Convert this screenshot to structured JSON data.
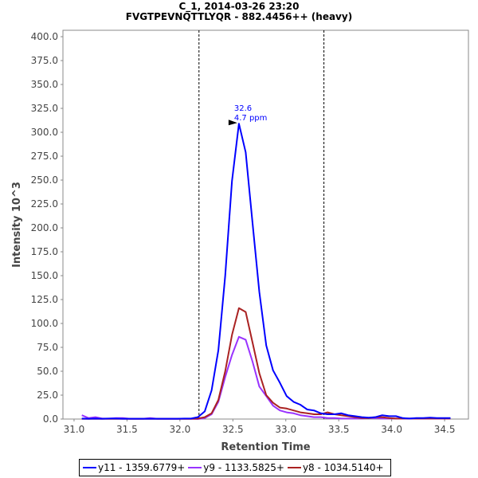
{
  "chart_data": {
    "type": "line",
    "title": "C_1, 2014-03-26 23:20",
    "subtitle": "FVGTPEVNQTTLYQR - 882.4456++ (heavy)",
    "xlabel": "Retention Time",
    "ylabel": "Intensity  10^3",
    "xlim": [
      30.895,
      34.725
    ],
    "ylim": [
      0,
      406.7
    ],
    "x_ticks": [
      "31.0",
      "31.5",
      "32.0",
      "32.5",
      "33.0",
      "33.5",
      "34.0",
      "34.5"
    ],
    "y_ticks": [
      "0.0",
      "25.0",
      "50.0",
      "75.0",
      "100.0",
      "125.0",
      "150.0",
      "175.0",
      "200.0",
      "225.0",
      "250.0",
      "275.0",
      "300.0",
      "325.0",
      "350.0",
      "375.0",
      "400.0"
    ],
    "grid": false,
    "legend_position": "bottom",
    "integration_boundaries": [
      32.18,
      33.36
    ],
    "peak_annotation": {
      "rt_label": "32.6",
      "ppm_label": "4.7 ppm",
      "x": 32.557,
      "y": 309
    },
    "x": [
      31.073,
      31.138,
      31.202,
      31.267,
      31.331,
      31.396,
      31.46,
      31.525,
      31.589,
      31.654,
      31.718,
      31.783,
      31.847,
      31.912,
      31.976,
      32.041,
      32.105,
      32.17,
      32.234,
      32.299,
      32.363,
      32.428,
      32.492,
      32.557,
      32.621,
      32.686,
      32.75,
      32.815,
      32.879,
      32.944,
      33.008,
      33.073,
      33.137,
      33.202,
      33.266,
      33.331,
      33.395,
      33.46,
      33.524,
      33.589,
      33.653,
      33.718,
      33.782,
      33.847,
      33.911,
      33.976,
      34.04,
      34.105,
      34.169,
      34.234,
      34.298,
      34.363,
      34.427,
      34.492,
      34.556
    ],
    "series": [
      {
        "name": "y11 - 1359.6779+",
        "color": "#0000ff",
        "values": [
          0.5,
          0.3,
          0.5,
          0.3,
          0.5,
          0.5,
          0.3,
          0.3,
          0.3,
          0.3,
          0.3,
          0.3,
          0.3,
          0.3,
          0.3,
          0.5,
          0.5,
          2,
          8,
          30,
          72,
          150,
          249,
          309,
          279,
          205,
          133,
          77,
          51,
          38,
          24,
          18,
          15,
          10,
          9,
          6,
          5,
          5,
          6,
          4,
          3,
          2,
          1.5,
          2,
          4,
          3,
          3,
          1,
          0.5,
          1,
          1,
          1.5,
          1,
          1,
          1
        ]
      },
      {
        "name": "y9 - 1133.5825+",
        "color": "#9933ff",
        "values": [
          4,
          1,
          2,
          0.5,
          0.5,
          1,
          1,
          0.3,
          0.3,
          0.3,
          1,
          0.3,
          0.3,
          0.3,
          0.3,
          0.3,
          0.3,
          0,
          1,
          5,
          18,
          44,
          67,
          86,
          83,
          60,
          34,
          24,
          14,
          9,
          7,
          6,
          4,
          3,
          2,
          2,
          1,
          1,
          0.5,
          0.5,
          0.5,
          0.5,
          1,
          1,
          0.5,
          0.5,
          0.5,
          0.5,
          0.5,
          0.5,
          0.5,
          0.5,
          0.5,
          0.5,
          0.5
        ]
      },
      {
        "name": "y8 - 1034.5140+",
        "color": "#aa2222",
        "values": [
          0.2,
          0.2,
          0.2,
          0.2,
          0.2,
          0.2,
          0.2,
          0.2,
          0.2,
          0.2,
          0.2,
          0.2,
          0.2,
          0.2,
          0.2,
          0.2,
          0.2,
          0.5,
          2,
          6,
          20,
          50,
          88,
          116,
          112,
          80,
          48,
          25,
          17,
          12,
          11,
          9,
          7,
          6,
          5,
          5,
          7,
          5,
          4,
          3,
          2,
          1,
          1,
          2,
          2,
          1,
          0.5,
          0.5,
          0.5,
          0.5,
          0.5,
          0.5,
          0.5,
          0.5,
          0.5
        ]
      }
    ]
  }
}
